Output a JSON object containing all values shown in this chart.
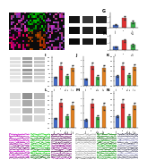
{
  "background": "#ffffff",
  "top_fluo_bg": "#111111",
  "wb_bg": "#cccccc",
  "wb_bg2": "#bbbbbb",
  "bar_panels_top": [
    {
      "label": "G",
      "cats": [
        "Sham",
        "HI",
        "HI+\nHMGB1\nsiRNA"
      ],
      "vals": [
        1.0,
        3.6,
        2.0
      ],
      "errs": [
        0.12,
        0.55,
        0.45
      ],
      "colors": [
        "#4169c8",
        "#e03030",
        "#38b048"
      ]
    },
    {
      "label": "H",
      "cats": [
        "Sham",
        "HI",
        "HI+\nHMGB1\nsiRNA"
      ],
      "vals": [
        1.0,
        2.6,
        1.4
      ],
      "errs": [
        0.1,
        0.42,
        0.28
      ],
      "colors": [
        "#4169c8",
        "#e03030",
        "#38b048"
      ]
    }
  ],
  "bar_panels_mid": [
    {
      "label": "I",
      "cats": [
        "Sham",
        "HI",
        "HI+\nHMGB1\nsiRNA",
        "HI+Ctrl\nsiRNA"
      ],
      "vals": [
        1.0,
        2.4,
        1.15,
        2.2
      ],
      "errs": [
        0.09,
        0.38,
        0.22,
        0.32
      ],
      "colors": [
        "#4169c8",
        "#e03030",
        "#38b048",
        "#e08020"
      ]
    },
    {
      "label": "J",
      "cats": [
        "Sham",
        "HI",
        "HI+\nHMGB1\nsiRNA",
        "HI+Ctrl\nsiRNA"
      ],
      "vals": [
        1.0,
        3.0,
        1.3,
        2.7
      ],
      "errs": [
        0.11,
        0.48,
        0.28,
        0.42
      ],
      "colors": [
        "#4169c8",
        "#e03030",
        "#38b048",
        "#e08020"
      ]
    },
    {
      "label": "K",
      "cats": [
        "Sham",
        "HI",
        "HI+\nHMGB1\nsiRNA",
        "HI+Ctrl\nsiRNA"
      ],
      "vals": [
        1.0,
        2.0,
        1.05,
        1.85
      ],
      "errs": [
        0.09,
        0.32,
        0.18,
        0.28
      ],
      "colors": [
        "#4169c8",
        "#e03030",
        "#38b048",
        "#e08020"
      ]
    },
    {
      "label": "L",
      "cats": [
        "Sham",
        "HI",
        "HI+\nHMGB1\nsiRNA",
        "HI+Ctrl\nsiRNA"
      ],
      "vals": [
        1.0,
        2.7,
        1.2,
        2.4
      ],
      "errs": [
        0.09,
        0.38,
        0.22,
        0.38
      ],
      "colors": [
        "#4169c8",
        "#e03030",
        "#38b048",
        "#e08020"
      ]
    },
    {
      "label": "M",
      "cats": [
        "Sham",
        "HI",
        "HI+\nHMGB1\nsiRNA",
        "HI+Ctrl\nsiRNA"
      ],
      "vals": [
        1.0,
        3.3,
        1.4,
        2.9
      ],
      "errs": [
        0.13,
        0.52,
        0.28,
        0.47
      ],
      "colors": [
        "#4169c8",
        "#e03030",
        "#38b048",
        "#e08020"
      ]
    },
    {
      "label": "N",
      "cats": [
        "Sham",
        "HI",
        "HI+\nHMGB1\nsiRNA",
        "HI+Ctrl\nsiRNA"
      ],
      "vals": [
        1.0,
        2.1,
        0.95,
        1.9
      ],
      "errs": [
        0.09,
        0.33,
        0.18,
        0.28
      ],
      "colors": [
        "#4169c8",
        "#e03030",
        "#38b048",
        "#e08020"
      ]
    }
  ],
  "fluo_colors_left": [
    "#cc00cc",
    "#00cc00",
    "#990099"
  ],
  "fluo_colors_right": [
    "#dddddd",
    "#00cc00",
    "#9999cc"
  ],
  "wb_bands_top": {
    "n_rows": 3,
    "n_cols": 3,
    "row_darkness": [
      0.55,
      0.35,
      0.25
    ],
    "col_darkness": [
      0.3,
      0.8,
      0.5
    ]
  },
  "wb_bands_mid": {
    "n_rows": 7,
    "n_cols": 4,
    "row_darkness": [
      0.5,
      0.45,
      0.4,
      0.55,
      0.42,
      0.38,
      0.3
    ],
    "col_darkness": [
      0.25,
      0.75,
      0.5,
      0.65
    ]
  }
}
